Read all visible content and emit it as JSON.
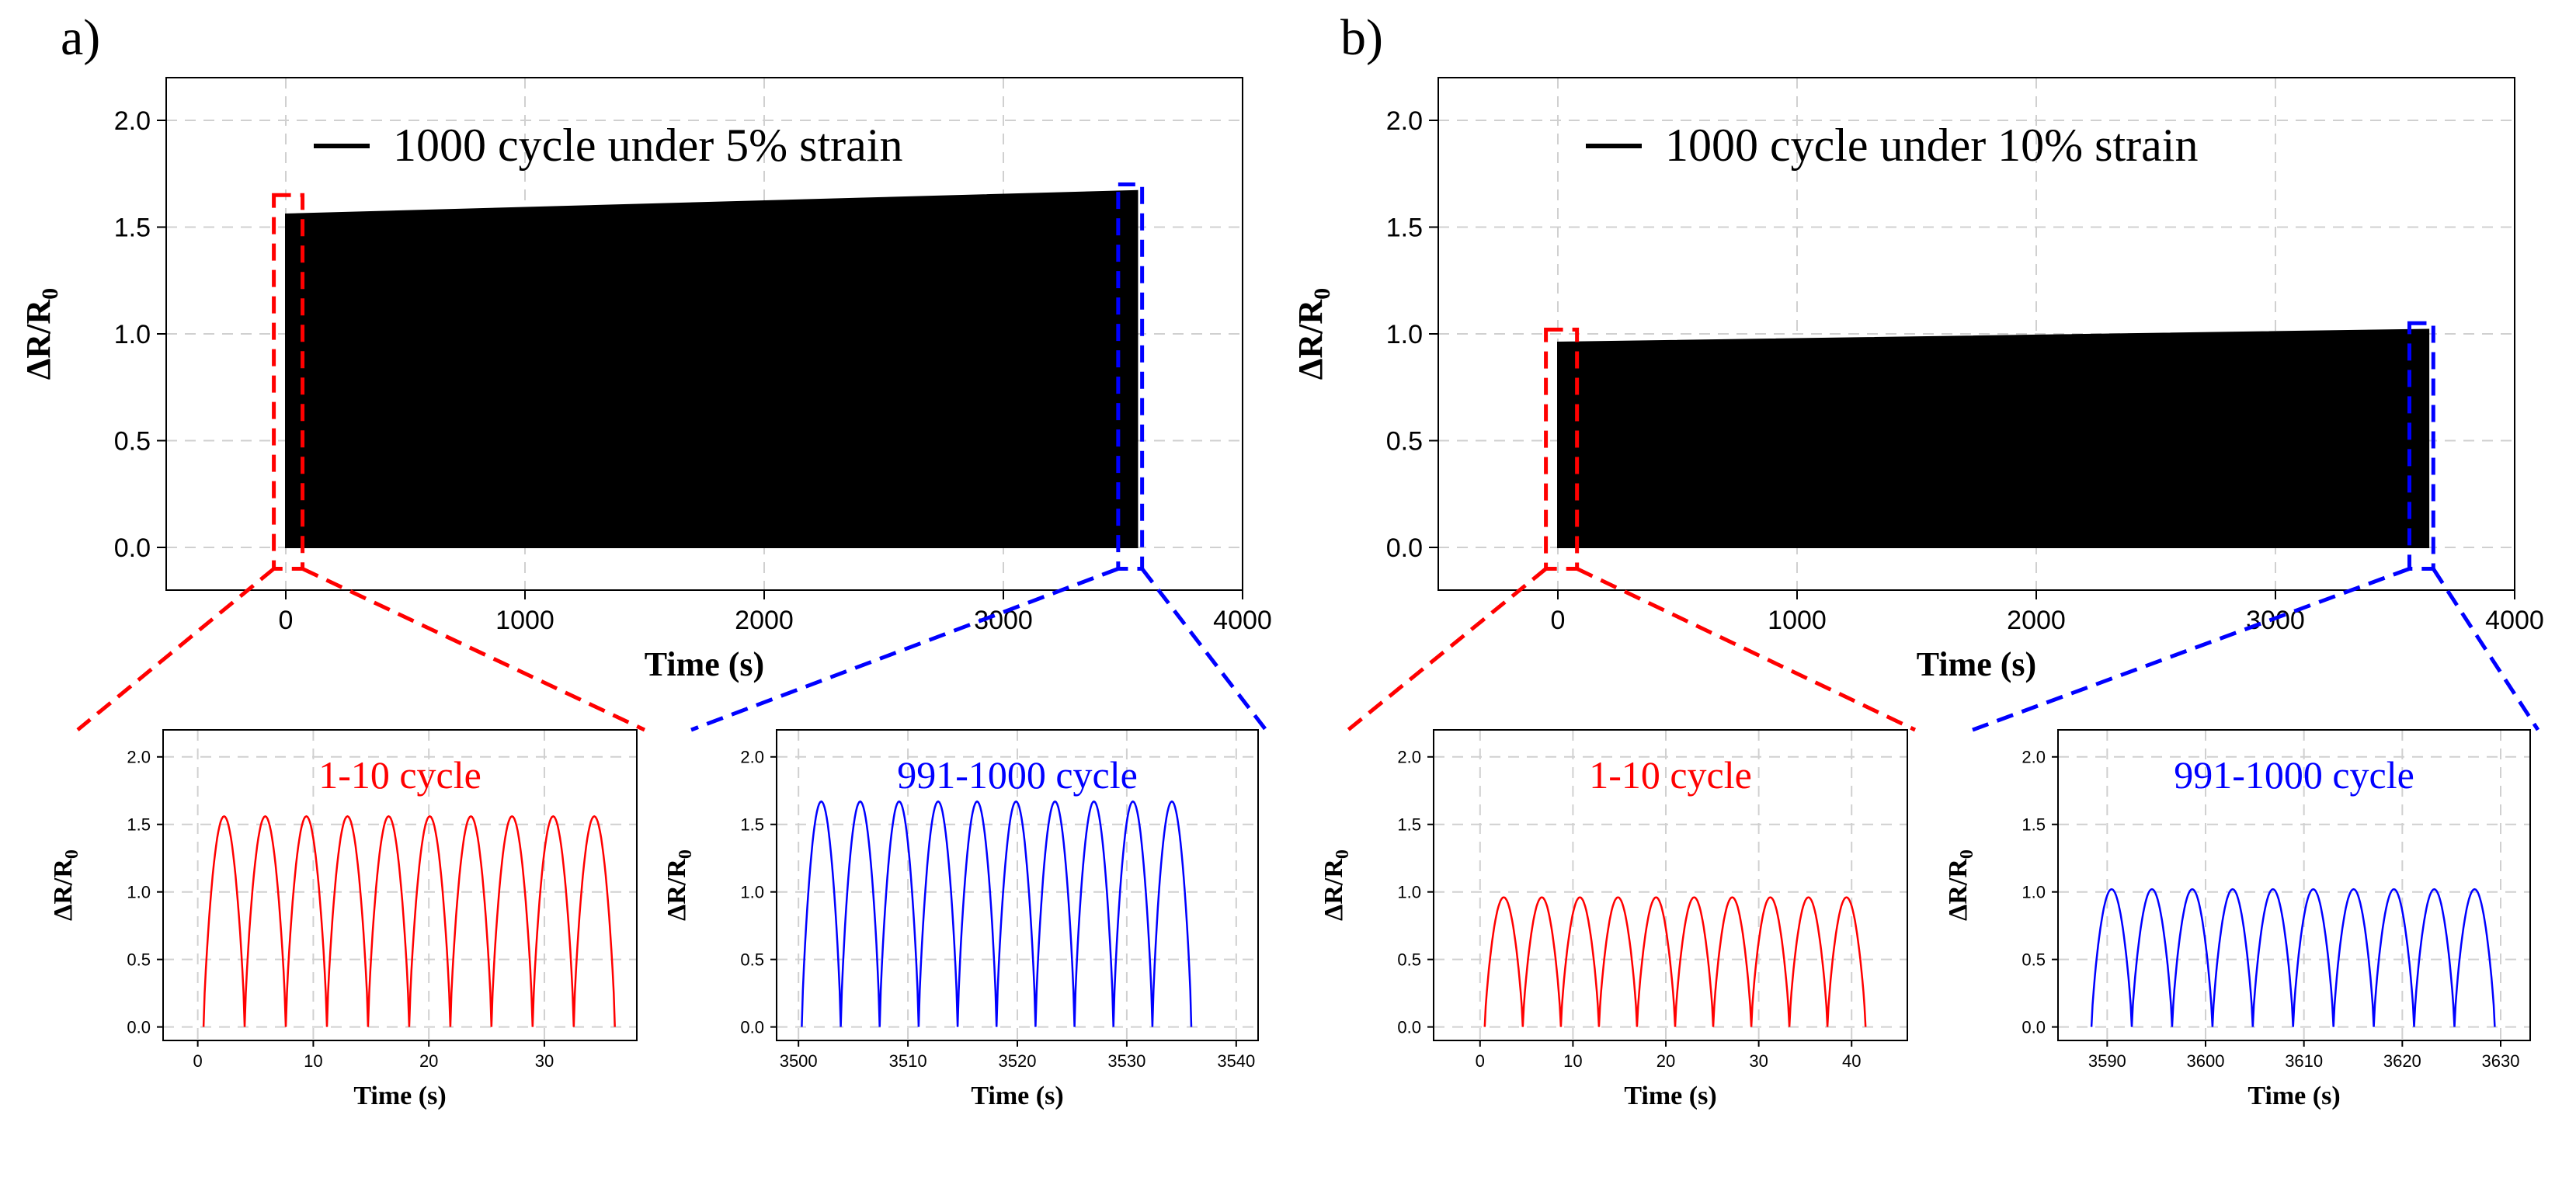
{
  "panel_labels": [
    "a)",
    "b)"
  ],
  "colors": {
    "trace": "#000000",
    "zoom_first": "#ff0000",
    "zoom_last": "#0000ff",
    "grid": "#d0d0d0",
    "axis": "#000000"
  },
  "chart_data": [
    {
      "id": "a-main",
      "type": "line",
      "panel": "a)",
      "legend": "1000 cycle under 5% strain",
      "xlabel": "Time (s)",
      "ylabel": "ΔR/R0",
      "xlim": [
        -500,
        4000
      ],
      "ylim": [
        -0.2,
        2.2
      ],
      "xticks": [
        0,
        1000,
        2000,
        3000,
        4000
      ],
      "yticks": [
        0.0,
        0.5,
        1.0,
        1.5,
        2.0
      ],
      "series": [
        {
          "name": "1000 cycle under 5% strain",
          "x_range": [
            0,
            3560
          ],
          "min": 0.0,
          "peak_start": 1.56,
          "peak_end": 1.67
        }
      ],
      "zoom_boxes": [
        {
          "label": "1-10 cycle",
          "color": "red",
          "x_range": [
            -50,
            70
          ],
          "y_range": [
            -0.1,
            1.65
          ]
        },
        {
          "label": "991-1000 cycle",
          "color": "blue",
          "x_range": [
            3480,
            3580
          ],
          "y_range": [
            -0.1,
            1.7
          ]
        }
      ]
    },
    {
      "id": "a-zoom1",
      "type": "line",
      "title": "1-10 cycle",
      "xlabel": "Time (s)",
      "ylabel": "ΔR/R0",
      "xlim": [
        -3,
        38
      ],
      "ylim": [
        -0.1,
        2.2
      ],
      "xticks": [
        0,
        10,
        20,
        30
      ],
      "yticks": [
        0.0,
        0.5,
        1.0,
        1.5,
        2.0
      ],
      "series": [
        {
          "name": "1-10 cycle",
          "start": 0.5,
          "period": 3.56,
          "cycles": 10,
          "peak": 1.56,
          "min": 0.0
        }
      ]
    },
    {
      "id": "a-zoom2",
      "type": "line",
      "title": "991-1000 cycle",
      "xlabel": "Time (s)",
      "ylabel": "ΔR/R0",
      "xlim": [
        3498,
        3542
      ],
      "ylim": [
        -0.1,
        2.2
      ],
      "xticks": [
        3500,
        3510,
        3520,
        3530,
        3540
      ],
      "yticks": [
        0.0,
        0.5,
        1.0,
        1.5,
        2.0
      ],
      "series": [
        {
          "name": "991-1000 cycle",
          "start": 3500.3,
          "period": 3.56,
          "cycles": 10,
          "peak": 1.67,
          "min": 0.0
        }
      ]
    },
    {
      "id": "b-main",
      "type": "line",
      "panel": "b)",
      "legend": "1000 cycle under 10% strain",
      "xlabel": "Time (s)",
      "ylabel": "ΔR/R0",
      "xlim": [
        -500,
        4000
      ],
      "ylim": [
        -0.2,
        2.2
      ],
      "xticks": [
        0,
        1000,
        2000,
        3000,
        4000
      ],
      "yticks": [
        0.0,
        0.5,
        1.0,
        1.5,
        2.0
      ],
      "series": [
        {
          "name": "1000 cycle under 10% strain",
          "x_range": [
            0,
            3640
          ],
          "min": 0.0,
          "peak_start": 0.96,
          "peak_end": 1.02
        }
      ],
      "zoom_boxes": [
        {
          "label": "1-10 cycle",
          "color": "red",
          "x_range": [
            -50,
            80
          ],
          "y_range": [
            -0.1,
            1.02
          ]
        },
        {
          "label": "991-1000 cycle",
          "color": "blue",
          "x_range": [
            3560,
            3660
          ],
          "y_range": [
            -0.1,
            1.05
          ]
        }
      ]
    },
    {
      "id": "b-zoom1",
      "type": "line",
      "title": "1-10 cycle",
      "xlabel": "Time (s)",
      "ylabel": "ΔR/R0",
      "xlim": [
        -5,
        46
      ],
      "ylim": [
        -0.1,
        2.2
      ],
      "xticks": [
        0,
        10,
        20,
        30,
        40
      ],
      "yticks": [
        0.0,
        0.5,
        1.0,
        1.5,
        2.0
      ],
      "series": [
        {
          "name": "1-10 cycle",
          "start": 0.5,
          "period": 4.1,
          "cycles": 10,
          "peak": 0.96,
          "min": 0.0
        }
      ]
    },
    {
      "id": "b-zoom2",
      "type": "line",
      "title": "991-1000 cycle",
      "xlabel": "Time (s)",
      "ylabel": "ΔR/R0",
      "xlim": [
        3585,
        3633
      ],
      "ylim": [
        -0.1,
        2.2
      ],
      "xticks": [
        3590,
        3600,
        3610,
        3620,
        3630
      ],
      "yticks": [
        0.0,
        0.5,
        1.0,
        1.5,
        2.0
      ],
      "series": [
        {
          "name": "991-1000 cycle",
          "start": 3588.4,
          "period": 4.1,
          "cycles": 10,
          "peak": 1.02,
          "min": 0.0
        }
      ]
    }
  ]
}
